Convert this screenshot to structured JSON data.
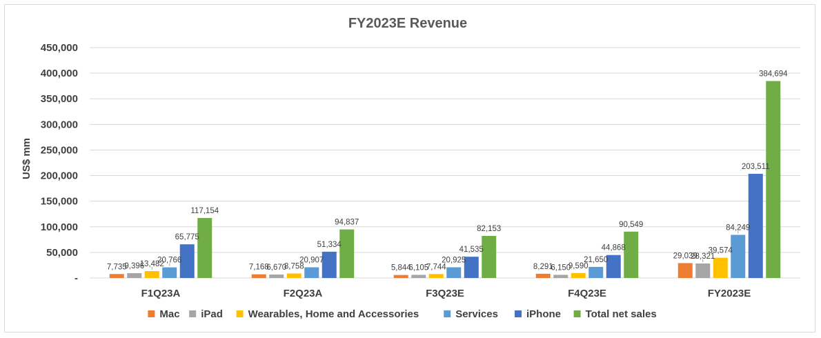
{
  "chart_data": {
    "type": "bar",
    "title": "FY2023E Revenue",
    "xlabel": "",
    "ylabel": "US$ mm",
    "ylim": [
      0,
      450000
    ],
    "ytick_values": [
      0,
      50000,
      100000,
      150000,
      200000,
      250000,
      300000,
      350000,
      400000,
      450000
    ],
    "ytick_labels": [
      "-",
      "50,000",
      "100,000",
      "150,000",
      "200,000",
      "250,000",
      "300,000",
      "350,000",
      "400,000",
      "450,000"
    ],
    "grid": true,
    "legend_position": "bottom",
    "categories": [
      "F1Q23A",
      "F2Q23A",
      "F3Q23E",
      "F4Q23E",
      "FY2023E"
    ],
    "series": [
      {
        "name": "Mac",
        "color": "#ED7D31",
        "values": [
          7735,
          7168,
          5844,
          8291,
          29039
        ],
        "labels": [
          "7,735",
          "7,168",
          "5,844",
          "8,291",
          "29,039"
        ]
      },
      {
        "name": "iPad",
        "color": "#A5A5A5",
        "values": [
          9396,
          6670,
          6105,
          6150,
          28321
        ],
        "labels": [
          "9,396",
          "6,670",
          "6,105",
          "6,150",
          "28,321"
        ]
      },
      {
        "name": "Wearables, Home and Accessories",
        "color": "#FFC000",
        "values": [
          13482,
          8758,
          7744,
          9590,
          39574
        ],
        "labels": [
          "13,482",
          "8,758",
          "7,744",
          "9,590",
          "39,574"
        ]
      },
      {
        "name": "Services",
        "color": "#5B9BD5",
        "values": [
          20766,
          20907,
          20925,
          21650,
          84249
        ],
        "labels": [
          "20,766",
          "20,907",
          "20,925",
          "21,650",
          "84,249"
        ]
      },
      {
        "name": "iPhone",
        "color": "#4472C4",
        "values": [
          65775,
          51334,
          41535,
          44868,
          203511
        ],
        "labels": [
          "65,775",
          "51,334",
          "41,535",
          "44,868",
          "203,511"
        ]
      },
      {
        "name": "Total net sales",
        "color": "#70AD47",
        "values": [
          117154,
          94837,
          82153,
          90549,
          384694
        ],
        "labels": [
          "117,154",
          "94,837",
          "82,153",
          "90,549",
          "384,694"
        ]
      }
    ]
  }
}
